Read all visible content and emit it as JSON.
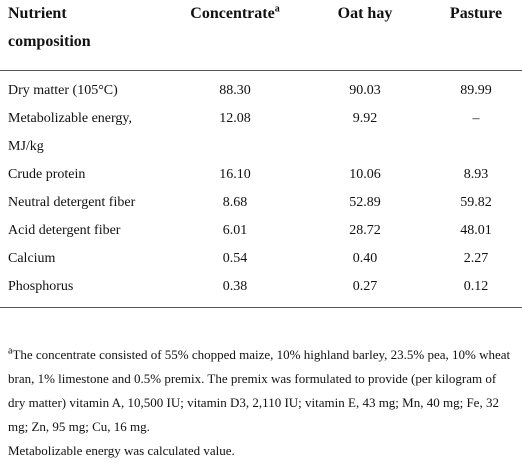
{
  "table": {
    "header": [
      {
        "text": "Nutrient composition"
      },
      {
        "text": "Concentrate",
        "sup": "a"
      },
      {
        "text": "Oat hay"
      },
      {
        "text": "Pasture"
      }
    ],
    "rows": [
      [
        "Dry matter (105°C)",
        "88.30",
        "90.03",
        "89.99"
      ],
      [
        "Metabolizable energy, MJ/kg",
        "12.08",
        "9.92",
        "–"
      ],
      [
        "Crude protein",
        "16.10",
        "10.06",
        "8.93"
      ],
      [
        "Neutral detergent fiber",
        "8.68",
        "52.89",
        "59.82"
      ],
      [
        "Acid detergent fiber",
        "6.01",
        "28.72",
        "48.01"
      ],
      [
        "Calcium",
        "0.54",
        "0.40",
        "2.27"
      ],
      [
        "Phosphorus",
        "0.38",
        "0.27",
        "0.12"
      ]
    ]
  },
  "footnotes": [
    {
      "sup": "a",
      "text": "The concentrate consisted of 55% chopped maize, 10% highland barley, 23.5% pea, 10% wheat bran, 1% limestone and 0.5% premix. The premix was formulated to provide (per kilogram of dry matter) vitamin A, 10,500 IU; vitamin D3, 2,110 IU; vitamin E, 43 mg; Mn, 40 mg; Fe, 32 mg; Zn, 95 mg; Cu, 16 mg."
    },
    {
      "text": "Metabolizable energy was calculated value."
    }
  ]
}
